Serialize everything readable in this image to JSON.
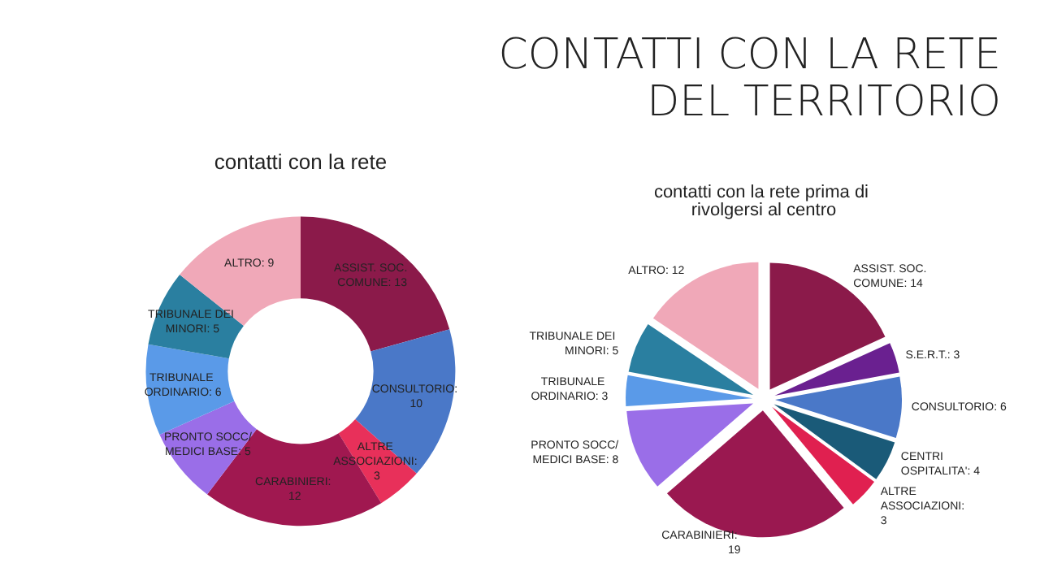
{
  "chart_data": [
    {
      "type": "donut",
      "title": "contatti con la rete",
      "annotations": [
        "CONTATTI CON LA RETE DEL TERRITORIO"
      ],
      "categories": [
        "ASSIST. SOC. COMUNE: 13",
        "CONSULTORIO: 10",
        "ALTRE ASSOCIAZIONI: 3",
        "CARABINIERI: 12",
        "PRONTO SOCC/MEDICI BASE: 5",
        "TRIBUNALE ORDINARIO: 6",
        "TRIBUNALE DEI MINORI: 5",
        "ALTRO: 9"
      ],
      "values": [
        13,
        10,
        3,
        12,
        5,
        6,
        5,
        9
      ],
      "colors": [
        "#8b1a4a",
        "#4a78c8",
        "#e8305a",
        "#a01850",
        "#9a6ee8",
        "#5a9ae8",
        "#2a7fa0",
        "#f0a8b8"
      ]
    },
    {
      "type": "pie",
      "title": "contatti con la rete prima di rivolgersi al centro",
      "categories": [
        "ASSIST. SOC. COMUNE: 14",
        "S.E.R.T.: 3",
        "CONSULTORIO: 6",
        "CENTRI OSPITALITA': 4",
        "ALTRE ASSOCIAZIONI: 3",
        "CARABINIERI: 19",
        "PRONTO SOCC/MEDICI BASE: 8",
        "TRIBUNALE ORDINARIO: 3",
        "TRIBUNALE DEI MINORI: 5",
        "ALTRO: 12"
      ],
      "values": [
        14,
        3,
        6,
        4,
        3,
        19,
        8,
        3,
        5,
        12
      ],
      "colors": [
        "#8b1a4a",
        "#6a2090",
        "#4a78c8",
        "#1a5a78",
        "#e02050",
        "#9a1850",
        "#9a6ee8",
        "#5a9ae8",
        "#2a7fa0",
        "#f0a8b8"
      ]
    }
  ]
}
